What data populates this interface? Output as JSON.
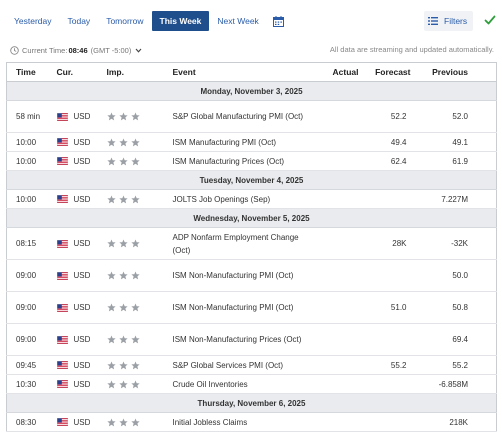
{
  "tabs": [
    {
      "label": "Yesterday",
      "active": false
    },
    {
      "label": "Today",
      "active": false
    },
    {
      "label": "Tomorrow",
      "active": false
    },
    {
      "label": "This Week",
      "active": true
    },
    {
      "label": "Next Week",
      "active": false
    }
  ],
  "toolbar": {
    "filters_label": "Filters"
  },
  "timebar": {
    "label": "Current Time:",
    "time": "08:46",
    "timezone": "(GMT -5:00)",
    "notice": "All data are streaming and updated automatically."
  },
  "table": {
    "headers": {
      "time": "Time",
      "cur": "Cur.",
      "imp": "Imp.",
      "event": "Event",
      "actual": "Actual",
      "forecast": "Forecast",
      "previous": "Previous"
    },
    "days": [
      {
        "label": "Monday, November 3, 2025",
        "events": [
          {
            "time": "58 min",
            "cur": "USD",
            "event": "S&P Global Manufacturing PMI (Oct)",
            "actual": "",
            "forecast": "52.2",
            "previous": "52.0",
            "tall": true
          },
          {
            "time": "10:00",
            "cur": "USD",
            "event": "ISM Manufacturing PMI (Oct)",
            "actual": "",
            "forecast": "49.4",
            "previous": "49.1",
            "tall": false
          },
          {
            "time": "10:00",
            "cur": "USD",
            "event": "ISM Manufacturing Prices (Oct)",
            "actual": "",
            "forecast": "62.4",
            "previous": "61.9",
            "tall": false
          }
        ]
      },
      {
        "label": "Tuesday, November 4, 2025",
        "events": [
          {
            "time": "10:00",
            "cur": "USD",
            "event": "JOLTS Job Openings (Sep)",
            "actual": "",
            "forecast": "",
            "previous": "7.227M",
            "tall": false
          }
        ]
      },
      {
        "label": "Wednesday, November 5, 2025",
        "events": [
          {
            "time": "08:15",
            "cur": "USD",
            "event": "ADP Nonfarm Employment Change (Oct)",
            "actual": "",
            "forecast": "28K",
            "previous": "-32K",
            "tall": true
          },
          {
            "time": "09:00",
            "cur": "USD",
            "event": "ISM Non-Manufacturing PMI (Oct)",
            "actual": "",
            "forecast": "",
            "previous": "50.0",
            "tall": true
          },
          {
            "time": "09:00",
            "cur": "USD",
            "event": "ISM Non-Manufacturing PMI (Oct)",
            "actual": "",
            "forecast": "51.0",
            "previous": "50.8",
            "tall": true
          },
          {
            "time": "09:00",
            "cur": "USD",
            "event": "ISM Non-Manufacturing Prices (Oct)",
            "actual": "",
            "forecast": "",
            "previous": "69.4",
            "tall": true
          },
          {
            "time": "09:45",
            "cur": "USD",
            "event": "S&P Global Services PMI (Oct)",
            "actual": "",
            "forecast": "55.2",
            "previous": "55.2",
            "tall": false
          },
          {
            "time": "10:30",
            "cur": "USD",
            "event": "Crude Oil Inventories",
            "actual": "",
            "forecast": "",
            "previous": "-6.858M",
            "tall": false
          }
        ]
      },
      {
        "label": "Thursday, November 6, 2025",
        "events": [
          {
            "time": "08:30",
            "cur": "USD",
            "event": "Initial Jobless Claims",
            "actual": "",
            "forecast": "",
            "previous": "218K",
            "tall": false
          }
        ]
      }
    ]
  },
  "colors": {
    "accent": "#1f4e8c",
    "link": "#2a5caa",
    "day_bg": "#e9ebee",
    "check": "#2e9e3a",
    "star": "#9aa0a6"
  }
}
